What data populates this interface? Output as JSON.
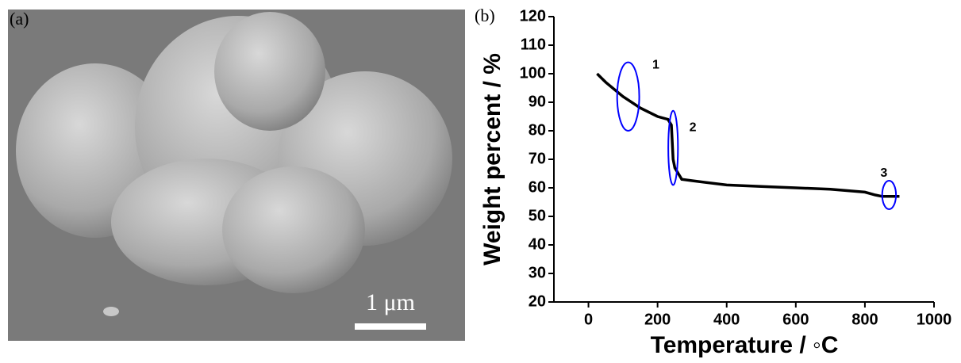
{
  "panel_a": {
    "label": "(a)",
    "scale_bar": "1 μm"
  },
  "chart_data": {
    "type": "line",
    "panel_label": "(b)",
    "xlabel": "Temperature / ◦C",
    "ylabel": "Weight percent / %",
    "x": [
      25,
      50,
      100,
      150,
      200,
      230,
      240,
      245,
      250,
      260,
      270,
      300,
      400,
      500,
      600,
      700,
      800,
      830,
      850,
      900
    ],
    "values": [
      100,
      97,
      92,
      88,
      85,
      84,
      82,
      70,
      67,
      65,
      63,
      62.5,
      61,
      60.5,
      60,
      59.5,
      58.5,
      57.5,
      57,
      57
    ],
    "color": "#000000",
    "xlim": [
      -100,
      1000
    ],
    "xticks": [
      0,
      200,
      400,
      600,
      800,
      1000
    ],
    "ylim": [
      20,
      120
    ],
    "yticks": [
      20,
      30,
      40,
      50,
      60,
      70,
      80,
      90,
      100,
      110,
      120
    ],
    "annotations": [
      {
        "text": "1",
        "color": "#0000ff"
      },
      {
        "text": "2",
        "color": "#0000ff"
      },
      {
        "text": "3",
        "color": "#0000ff"
      }
    ]
  }
}
